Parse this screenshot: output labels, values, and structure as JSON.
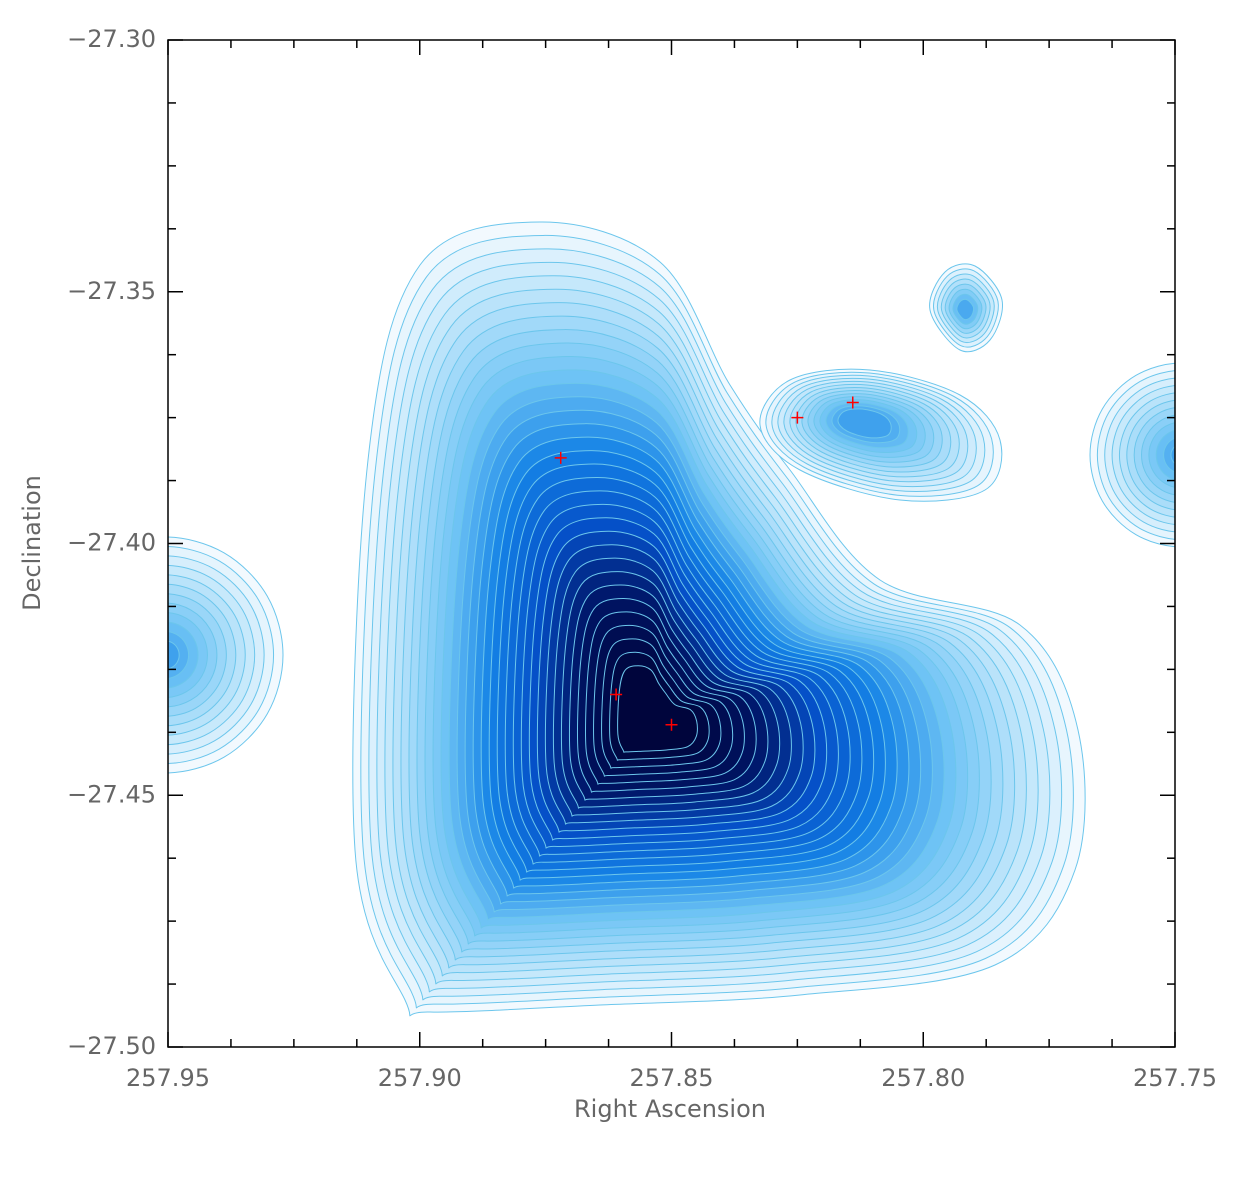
{
  "chart_data": {
    "type": "contour",
    "xlabel": "Right Ascension",
    "ylabel": "Declination",
    "xlim": [
      257.95,
      257.75
    ],
    "ylim": [
      -27.5,
      -27.3
    ],
    "xticks": [
      257.95,
      {
        "value": 257.9,
        "label": "257.90"
      },
      257.85,
      {
        "value": 257.8,
        "label": "257.80"
      },
      257.75
    ],
    "yticks": [
      {
        "value": -27.5,
        "label": "−27.50"
      },
      {
        "value": -27.45,
        "label": "−27.45"
      },
      {
        "value": -27.4,
        "label": "−27.40"
      },
      {
        "value": -27.35,
        "label": "−27.35"
      },
      {
        "value": -27.3,
        "label": "−27.30"
      }
    ],
    "xminorticks": [
      257.9375,
      257.925,
      257.9125,
      257.8875,
      257.875,
      257.8625,
      257.8375,
      257.825,
      257.8125,
      257.7875,
      257.775,
      257.7625
    ],
    "yminorticks": [
      -27.4875,
      -27.475,
      -27.4625,
      -27.4375,
      -27.425,
      -27.4125,
      -27.3875,
      -27.375,
      -27.3625,
      -27.3375,
      -27.325,
      -27.3125
    ],
    "series": [
      {
        "color": "#ff0000",
        "x": [
          257.872,
          257.861,
          257.85,
          257.825,
          257.814
        ],
        "values": [
          -27.383,
          -27.43,
          -27.436,
          -27.375,
          -27.372
        ]
      }
    ]
  }
}
